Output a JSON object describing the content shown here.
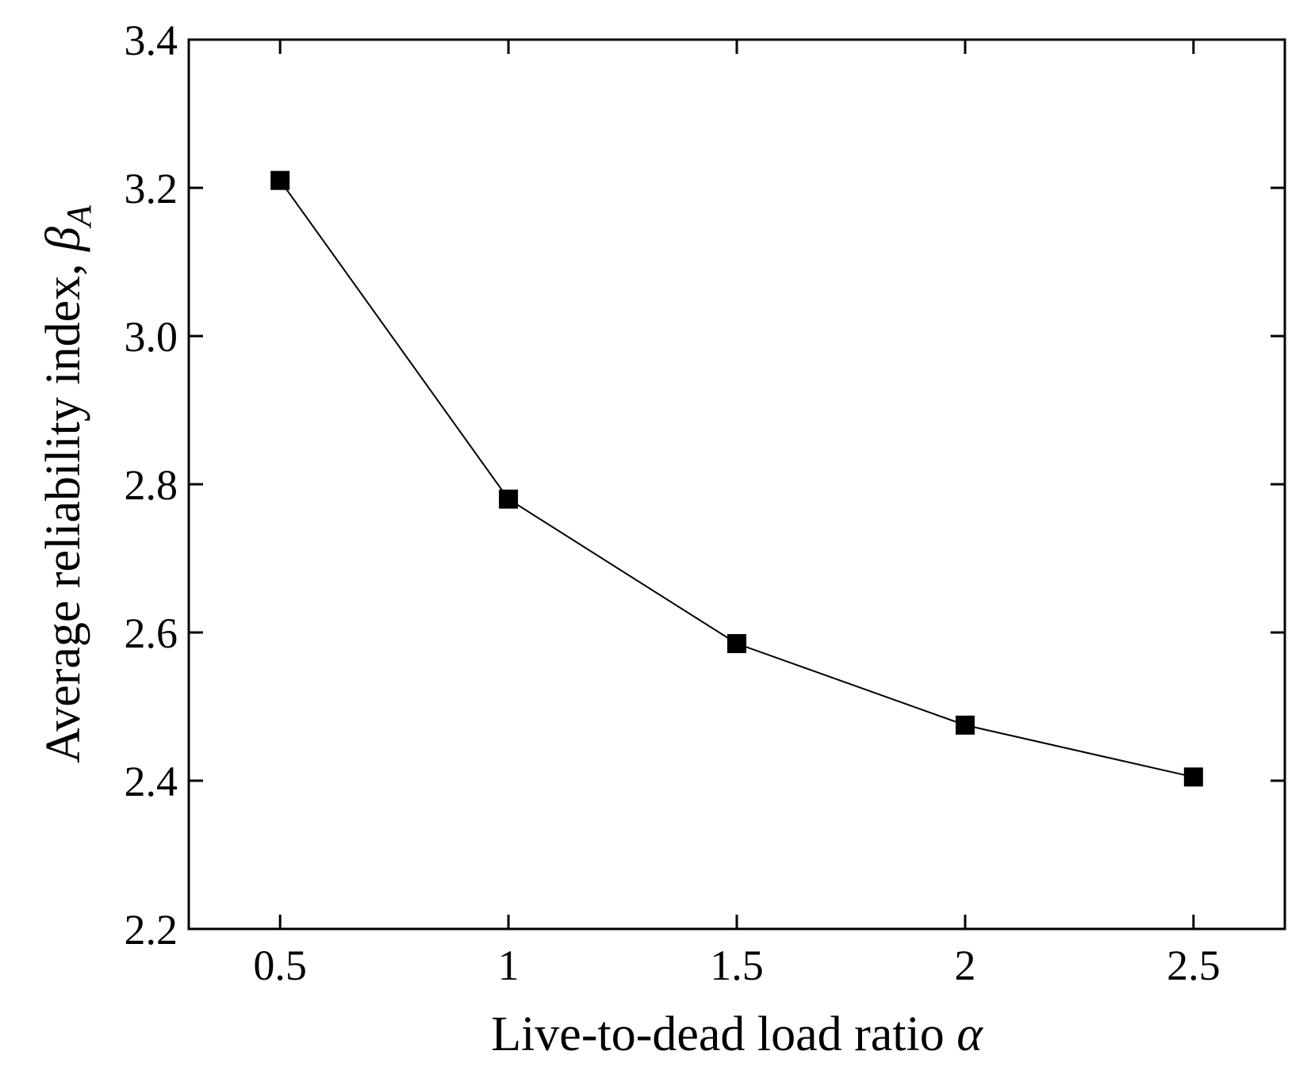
{
  "chart_data": {
    "type": "line",
    "title": "",
    "xlabel": "Live-to-dead load ratio ",
    "xlabel_symbol": "α",
    "ylabel": "Average reliability index, ",
    "ylabel_symbol": "β",
    "ylabel_subscript": "A",
    "xlim": [
      0.3,
      2.7
    ],
    "ylim": [
      2.2,
      3.4
    ],
    "xticks": [
      0.5,
      1,
      1.5,
      2,
      2.5
    ],
    "xtick_labels": [
      "0.5",
      "1",
      "1.5",
      "2",
      "2.5"
    ],
    "yticks": [
      2.2,
      2.4,
      2.6,
      2.8,
      3.0,
      3.2,
      3.4
    ],
    "ytick_labels": [
      "2.2",
      "2.4",
      "2.6",
      "2.8",
      "3.0",
      "3.2",
      "3.4"
    ],
    "grid": false,
    "legend": "none",
    "series": [
      {
        "marker": "filled-square",
        "color": "#000000",
        "x": [
          0.5,
          1.0,
          1.5,
          2.0,
          2.5
        ],
        "y": [
          3.21,
          2.78,
          2.585,
          2.475,
          2.405
        ]
      }
    ]
  }
}
